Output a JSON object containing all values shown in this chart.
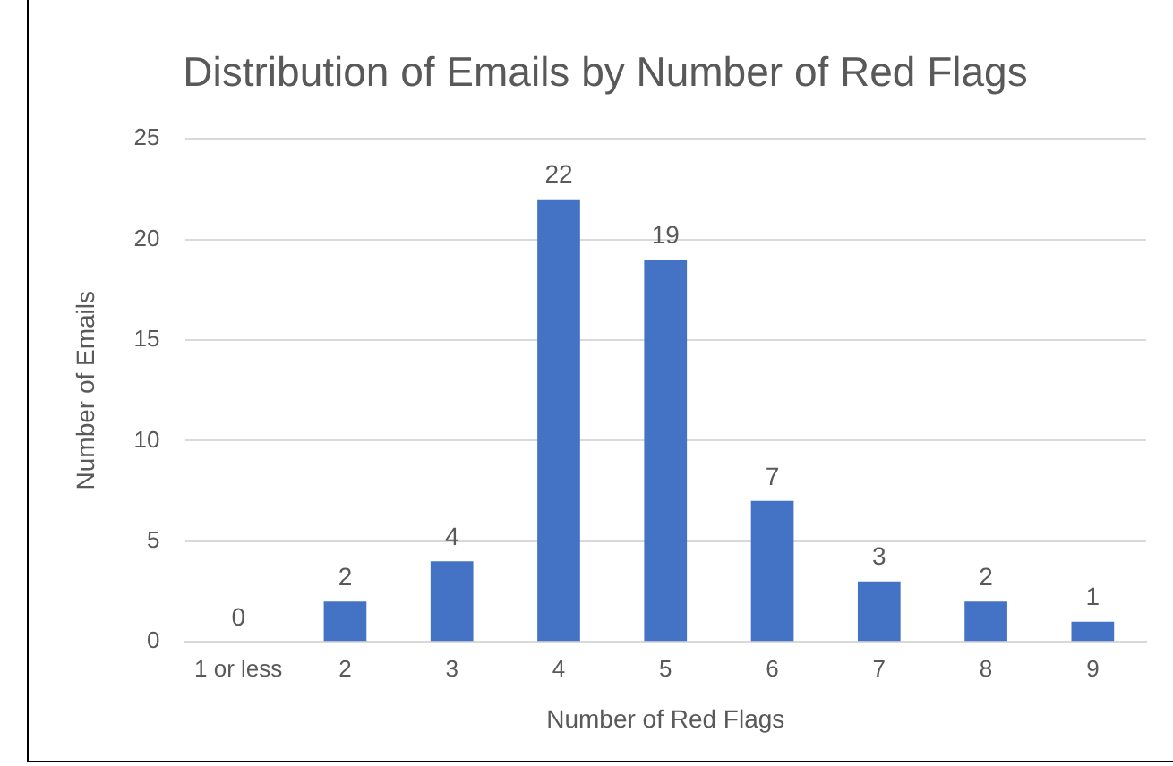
{
  "chart_data": {
    "type": "bar",
    "title": "Distribution of Emails by Number of Red Flags",
    "xlabel": "Number of Red Flags",
    "ylabel": "Number of Emails",
    "categories": [
      "1 or less",
      "2",
      "3",
      "4",
      "5",
      "6",
      "7",
      "8",
      "9"
    ],
    "values": [
      0,
      2,
      4,
      22,
      19,
      7,
      3,
      2,
      1
    ],
    "color": "#4472c4",
    "ylim": [
      0,
      25
    ],
    "yticks": [
      0,
      5,
      10,
      15,
      20,
      25
    ],
    "grid": "y",
    "data_labels": true,
    "legend": false
  }
}
